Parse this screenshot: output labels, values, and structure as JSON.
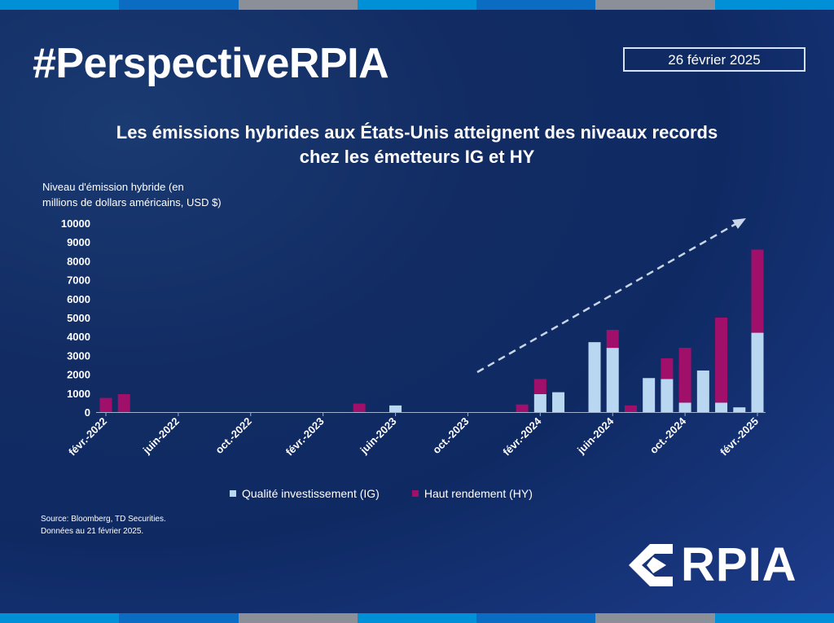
{
  "header": {
    "hashtag": "#PerspectiveRPIA",
    "date": "26 février 2025",
    "title_line1": "Les émissions hybrides aux États-Unis atteignent des niveaux records",
    "title_line2": "chez les émetteurs IG et HY"
  },
  "stripe_colors": [
    "#0090d8",
    "#0b6cc4",
    "#8a8f98",
    "#0090d8",
    "#0b6cc4",
    "#8a8f98",
    "#0090d8"
  ],
  "chart_data": {
    "type": "bar",
    "stacked": true,
    "ylabel_line1": "Niveau d'émission hybride (en",
    "ylabel_line2": "millions de dollars américains, USD $)",
    "ylim": [
      0,
      10000
    ],
    "yticks": [
      "10000",
      "9000",
      "8000",
      "7000",
      "6000",
      "5000",
      "4000",
      "3000",
      "2000",
      "1000",
      "0"
    ],
    "x_tick_labels": [
      {
        "label": "févr.-2022",
        "index": 0
      },
      {
        "label": "juin-2022",
        "index": 4
      },
      {
        "label": "oct.-2022",
        "index": 8
      },
      {
        "label": "févr.-2023",
        "index": 12
      },
      {
        "label": "juin-2023",
        "index": 16
      },
      {
        "label": "oct.-2023",
        "index": 20
      },
      {
        "label": "févr.-2024",
        "index": 24
      },
      {
        "label": "juin-2024",
        "index": 28
      },
      {
        "label": "oct.-2024",
        "index": 32
      },
      {
        "label": "févr.-2025",
        "index": 36
      }
    ],
    "categories": [
      "févr.-2022",
      "mars-2022",
      "avr.-2022",
      "mai-2022",
      "juin-2022",
      "juil.-2022",
      "août-2022",
      "sept.-2022",
      "oct.-2022",
      "nov.-2022",
      "déc.-2022",
      "janv.-2023",
      "févr.-2023",
      "mars-2023",
      "avr.-2023",
      "mai-2023",
      "juin-2023",
      "juil.-2023",
      "août-2023",
      "sept.-2023",
      "oct.-2023",
      "nov.-2023",
      "déc.-2023",
      "janv.-2024",
      "févr.-2024",
      "mars-2024",
      "avr.-2024",
      "mai-2024",
      "juin-2024",
      "juil.-2024",
      "août-2024",
      "sept.-2024",
      "oct.-2024",
      "nov.-2024",
      "déc.-2024",
      "janv.-2025",
      "févr.-2025"
    ],
    "series": [
      {
        "name": "Qualité investissement (IG)",
        "color": "#b9d7f0",
        "values": [
          0,
          0,
          0,
          0,
          0,
          0,
          0,
          0,
          0,
          0,
          0,
          0,
          0,
          0,
          0,
          0,
          350,
          0,
          0,
          0,
          0,
          0,
          0,
          0,
          950,
          1050,
          0,
          3700,
          3400,
          0,
          1800,
          1750,
          500,
          2200,
          500,
          250,
          4200
        ]
      },
      {
        "name": "Haut rendement (HY)",
        "color": "#a0106a",
        "values": [
          750,
          950,
          0,
          0,
          0,
          0,
          0,
          0,
          0,
          0,
          0,
          0,
          0,
          0,
          450,
          0,
          0,
          0,
          0,
          0,
          0,
          0,
          0,
          400,
          800,
          0,
          0,
          0,
          950,
          350,
          0,
          1100,
          2900,
          0,
          4500,
          0,
          4400
        ]
      }
    ],
    "trend_arrow": true
  },
  "legend": {
    "ig": "Qualité investissement (IG)",
    "hy": "Haut rendement (HY)"
  },
  "source": {
    "line1": "Source: Bloomberg, TD Securities.",
    "line2": "Données au 21 février 2025."
  },
  "logo": {
    "text": "RPIA",
    "icon": "rpia-chevron-icon"
  }
}
